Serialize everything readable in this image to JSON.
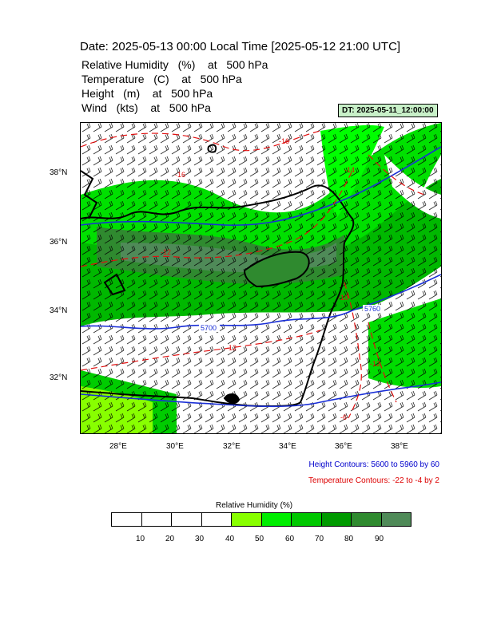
{
  "title": "Date: 2025-05-13  00:00 Local Time [2025-05-12  21:00 UTC]",
  "fields": [
    {
      "name": "Relative Humidity",
      "unit": "(%)",
      "at": "at",
      "level": "500 hPa"
    },
    {
      "name": "Temperature",
      "unit": "(C)",
      "at": "at",
      "level": "500 hPa"
    },
    {
      "name": "Height",
      "unit": "(m)",
      "at": "at",
      "level": "500 hPa"
    },
    {
      "name": "Wind",
      "unit": "(kts)",
      "at": "at",
      "level": "500 hPa"
    }
  ],
  "dt_badge": "DT: 2025-05-11_12:00:00",
  "map": {
    "lon_labels": [
      "28°E",
      "30°E",
      "32°E",
      "34°E",
      "36°E",
      "38°E"
    ],
    "lat_labels": [
      "38°N",
      "36°N",
      "34°N",
      "32°N"
    ],
    "height_contour_labels": [
      "5700",
      "5760"
    ],
    "temperature_contour_labels": [
      "-16",
      "-16",
      "-14",
      "-12",
      "-12",
      "-12",
      "-10",
      "-6"
    ],
    "colors": {
      "height_contour": "#1a2fd6",
      "temperature_contour": "#e01010",
      "coast": "#000000"
    }
  },
  "height_note": "Height Contours: 5600 to 5960 by 60",
  "temperature_note": "Temperature Contours: -22 to -4 by 2",
  "colorbar": {
    "title": "Relative Humidity  (%)",
    "labels": [
      "10",
      "20",
      "30",
      "40",
      "50",
      "60",
      "70",
      "80",
      "90"
    ],
    "colors": [
      "#ffffff",
      "#ffffff",
      "#ffffff",
      "#ffffff",
      "#88ff00",
      "#00ee00",
      "#00c800",
      "#009a00",
      "#2f8a2f",
      "#4f8a58"
    ]
  }
}
